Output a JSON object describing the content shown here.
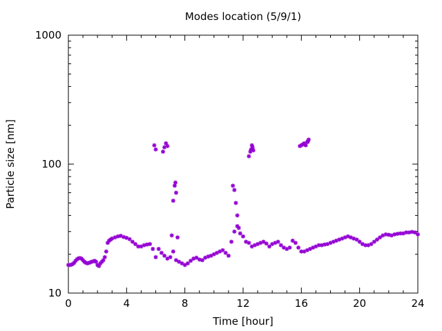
{
  "chart_data": {
    "type": "scatter",
    "title": "Modes location (5/9/1)",
    "xlabel": "Time [hour]",
    "ylabel": "Particle size [nm]",
    "x_ticks": [
      "0",
      "4",
      "8",
      "12",
      "16",
      "20",
      "24"
    ],
    "x_tick_values": [
      0,
      4,
      8,
      12,
      16,
      20,
      24
    ],
    "y_ticks": [
      "10",
      "100",
      "1000"
    ],
    "y_tick_values": [
      10,
      100,
      1000
    ],
    "xlim": [
      0,
      24
    ],
    "ylim": [
      10,
      1000
    ],
    "y_scale": "log",
    "grid": false,
    "legend": "none",
    "marker": "asterisk",
    "color": "#9400d3",
    "series": [
      {
        "x": [
          0.0,
          0.1,
          0.2,
          0.3,
          0.4,
          0.5,
          0.6,
          0.7,
          0.8,
          0.9,
          1.0,
          1.1,
          1.2,
          1.3,
          1.4,
          1.5,
          1.6,
          1.7,
          1.8,
          1.9,
          2.0,
          2.1,
          2.2,
          2.3,
          2.4,
          2.5,
          2.6,
          2.7,
          2.8,
          2.9,
          3.0,
          3.2,
          3.4,
          3.6,
          3.8,
          4.0,
          4.2,
          4.4,
          4.6,
          4.8,
          5.0,
          5.2,
          5.4,
          5.6,
          5.8,
          6.0,
          6.2,
          6.4,
          6.6,
          6.8,
          7.0,
          7.2,
          7.4,
          7.6,
          7.8,
          8.0,
          8.2,
          8.4,
          8.6,
          8.8,
          9.0,
          9.2,
          9.4,
          9.6,
          9.8,
          10.0,
          10.2,
          10.4,
          10.6,
          10.8,
          11.0,
          11.2,
          11.4,
          11.6,
          11.8,
          12.0,
          12.2,
          12.4,
          12.6,
          12.8,
          13.0,
          13.2,
          13.4,
          13.6,
          13.8,
          14.0,
          14.2,
          14.4,
          14.6,
          14.8,
          15.0,
          15.2,
          15.4,
          15.6,
          15.8,
          16.0,
          16.2,
          16.4,
          16.6,
          16.8,
          17.0,
          17.2,
          17.4,
          17.6,
          17.8,
          18.0,
          18.2,
          18.4,
          18.6,
          18.8,
          19.0,
          19.2,
          19.4,
          19.6,
          19.8,
          20.0,
          20.2,
          20.4,
          20.6,
          20.8,
          21.0,
          21.2,
          21.4,
          21.6,
          21.8,
          22.0,
          22.2,
          22.4,
          22.6,
          22.8,
          23.0,
          23.2,
          23.4,
          23.6,
          23.8,
          24.0
        ],
        "y": [
          16.5,
          16.5,
          16.6,
          16.8,
          17.2,
          17.8,
          18.3,
          18.6,
          18.7,
          18.5,
          18.0,
          17.5,
          17.2,
          17.0,
          17.1,
          17.3,
          17.5,
          17.6,
          17.8,
          17.5,
          16.5,
          16.2,
          17.0,
          17.5,
          18.0,
          19.0,
          21.0,
          24.5,
          25.5,
          26.0,
          26.5,
          27.0,
          27.5,
          27.8,
          27.2,
          26.8,
          26.2,
          25.0,
          24.0,
          23.0,
          23.0,
          23.5,
          23.8,
          24.0,
          22.0,
          19.0,
          22.0,
          20.5,
          19.5,
          18.5,
          19.0,
          21.0,
          18.0,
          17.5,
          17.0,
          16.5,
          17.0,
          17.8,
          18.5,
          18.8,
          18.2,
          18.0,
          18.8,
          19.2,
          19.5,
          20.0,
          20.5,
          21.0,
          21.5,
          20.5,
          19.5,
          25.0,
          30.0,
          33.0,
          29.0,
          27.5,
          25.0,
          24.5,
          23.0,
          23.5,
          24.0,
          24.5,
          25.0,
          24.2,
          23.0,
          24.0,
          24.5,
          25.0,
          23.5,
          22.5,
          22.0,
          22.5,
          25.5,
          24.5,
          22.5,
          21.0,
          21.0,
          21.5,
          22.0,
          22.5,
          23.0,
          23.5,
          23.5,
          23.8,
          24.0,
          24.5,
          25.0,
          25.5,
          26.0,
          26.5,
          27.0,
          27.5,
          27.0,
          26.5,
          26.0,
          25.0,
          24.0,
          23.5,
          23.5,
          24.0,
          25.0,
          26.0,
          27.0,
          28.0,
          28.5,
          28.3,
          28.0,
          28.5,
          28.8,
          29.0,
          29.0,
          29.5,
          29.5,
          29.8,
          29.5,
          28.5
        ]
      },
      {
        "x": [
          5.9,
          6.0,
          6.5,
          6.6,
          6.7,
          6.8,
          7.1,
          7.2,
          7.3,
          7.35,
          7.4,
          7.5,
          11.3,
          11.4,
          11.5,
          11.6,
          11.7,
          12.4,
          12.5,
          12.55,
          12.6,
          12.65,
          12.7,
          15.9,
          16.0,
          16.1,
          16.2,
          16.3,
          16.4,
          16.45,
          16.5
        ],
        "y": [
          140,
          130,
          125,
          135,
          145,
          138,
          28,
          52,
          68,
          72,
          60,
          27,
          68,
          63,
          50,
          40,
          32,
          115,
          125,
          130,
          140,
          135,
          128,
          138,
          140,
          142,
          145,
          140,
          148,
          150,
          155
        ]
      }
    ]
  }
}
